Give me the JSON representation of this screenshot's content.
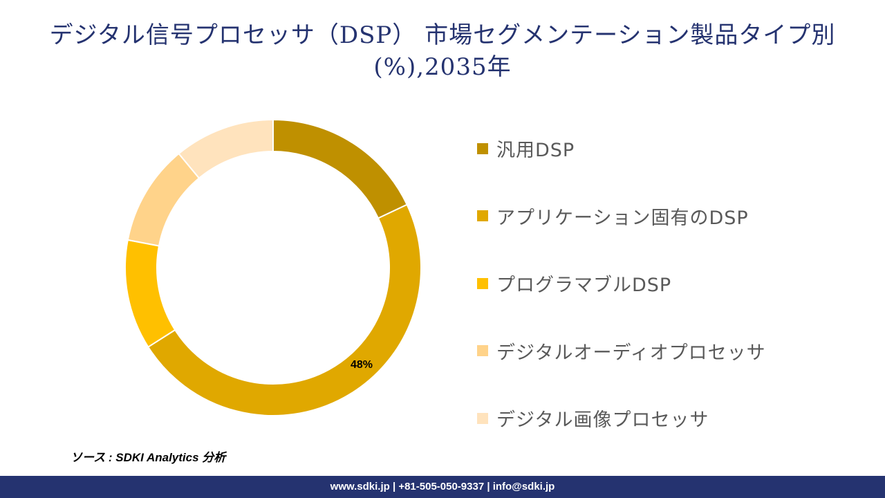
{
  "title_line1": "デジタル信号プロセッサ（DSP） 市場セグメンテーション製品タイプ別",
  "title_line2": "(%),2035年",
  "chart_data": {
    "type": "pie",
    "variant": "donut",
    "categories": [
      "汎用DSP",
      "アプリケーション固有のDSP",
      "プログラマブルDSP",
      "デジタルオーディオプロセッサ",
      "デジタル画像プロセッサ"
    ],
    "values": [
      18,
      48,
      12,
      11,
      11
    ],
    "colors": [
      "#BF9000",
      "#E0A800",
      "#FFC000",
      "#FFD38A",
      "#FFE3BD"
    ],
    "data_labels": [
      "",
      "48%",
      "",
      "",
      ""
    ],
    "legend_position": "right"
  },
  "source": "ソース : SDKI Analytics 分析",
  "footer": "www.sdki.jp | +81-505-050-9337 | info@sdki.jp"
}
